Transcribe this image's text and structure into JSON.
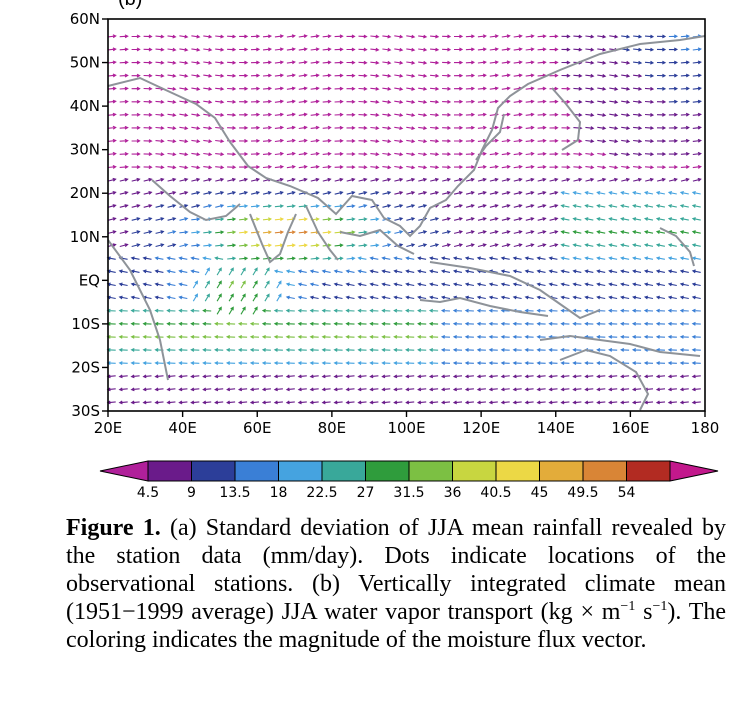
{
  "panel_label": "(b)",
  "chart_data": {
    "type": "vector-map",
    "x_ticks": [
      "20E",
      "40E",
      "60E",
      "80E",
      "100E",
      "120E",
      "140E",
      "160E",
      "180"
    ],
    "y_ticks": [
      "60N",
      "50N",
      "40N",
      "30N",
      "20N",
      "10N",
      "EQ",
      "10S",
      "20S",
      "30S"
    ],
    "xlim": [
      20,
      180
    ],
    "ylim": [
      -30,
      60
    ],
    "colorbar": {
      "ticks": [
        "4.5",
        "9",
        "13.5",
        "18",
        "22.5",
        "27",
        "31.5",
        "36",
        "40.5",
        "45",
        "49.5",
        "54"
      ],
      "colors": [
        "#b0209a",
        "#6a1b8a",
        "#2c3e99",
        "#3a7fd6",
        "#45a3e0",
        "#39a89a",
        "#2f9c3c",
        "#7cc043",
        "#c8d640",
        "#ecd845",
        "#e3ac3a",
        "#d98536",
        "#b22b22",
        "#c2188c"
      ]
    }
  },
  "caption": {
    "label": "Figure 1.",
    "text_a": " (a) Standard deviation of JJA mean rainfall revealed by the station data (mm/day). Dots indicate locations of the observational stations. (b) Vertically integrated climate mean (1951−1999 average) JJA water vapor transport (kg × m",
    "sup_1": "−1",
    "text_b": " s",
    "sup_2": "−1",
    "text_c": "). The coloring indicates the magnitude of the moisture flux vector."
  }
}
